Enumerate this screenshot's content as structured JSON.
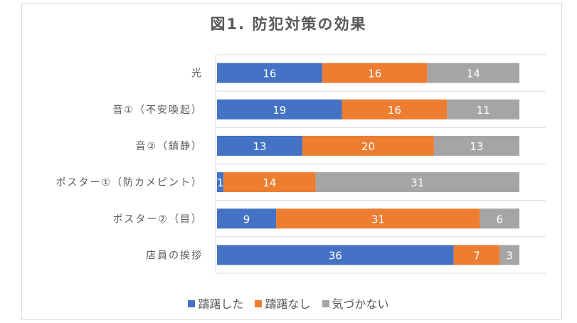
{
  "chart_data": {
    "type": "bar",
    "orientation": "horizontal",
    "stacked": true,
    "title": "図1. 防犯対策の効果",
    "categories": [
      "光",
      "音①（不安喚起）",
      "音②（鎮静）",
      "ポスター①（防カメピント）",
      "ポスター②（目）",
      "店員の挨拶"
    ],
    "series": [
      {
        "name": "躊躇した",
        "color": "#4472c4",
        "values": [
          16,
          19,
          13,
          1,
          9,
          36
        ]
      },
      {
        "name": "躊躇なし",
        "color": "#ed7d31",
        "values": [
          16,
          16,
          20,
          14,
          31,
          7
        ]
      },
      {
        "name": "気づかない",
        "color": "#a5a5a5",
        "values": [
          14,
          11,
          13,
          31,
          6,
          3
        ]
      }
    ],
    "xlim": [
      0,
      50
    ],
    "grid": "horizontal separators",
    "legend": "bottom",
    "data_labels": true
  }
}
